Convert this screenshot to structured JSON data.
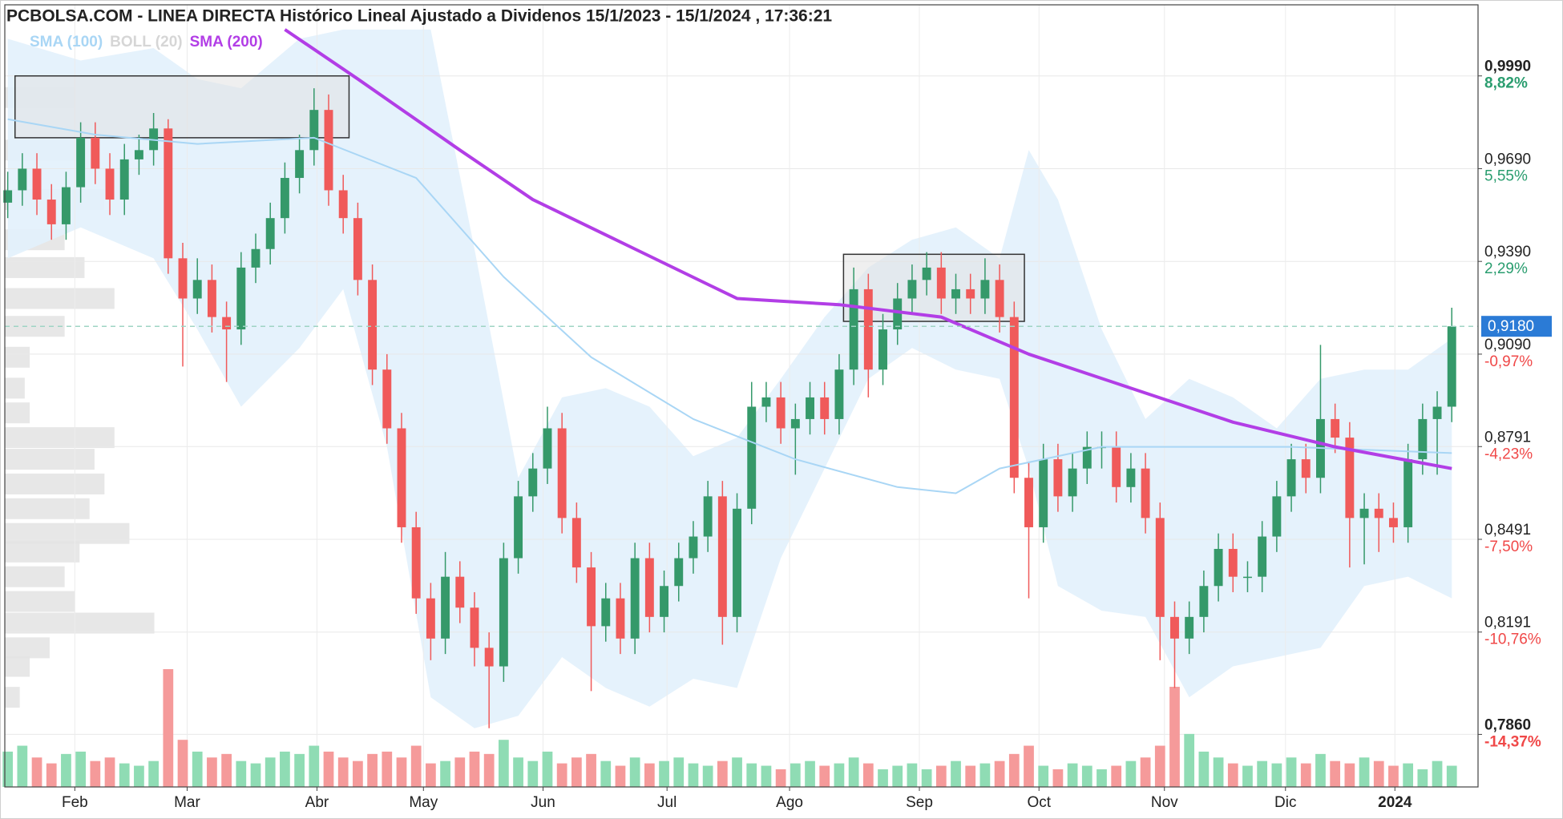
{
  "chart_data": {
    "type": "candlestick",
    "title": "PCBOLSA.COM - LINEA DIRECTA Histórico Lineal Ajustado a Dividenos 15/1/2023 - 15/1/2024 , 17:36:21",
    "up_color": "#35996a",
    "down_color": "#f05a5a",
    "volume_up_color": "#8fdcb4",
    "volume_down_color": "#f59a9a",
    "xlim": [
      -0.2,
      100.8
    ],
    "xticks": [
      {
        "value": 4.6,
        "label": "Feb"
      },
      {
        "value": 12.3,
        "label": "Mar"
      },
      {
        "value": 21.2,
        "label": "Abr"
      },
      {
        "value": 28.5,
        "label": "May"
      },
      {
        "value": 36.7,
        "label": "Jun"
      },
      {
        "value": 45.2,
        "label": "Jul"
      },
      {
        "value": 53.6,
        "label": "Ago"
      },
      {
        "value": 62.5,
        "label": "Sep"
      },
      {
        "value": 70.7,
        "label": "Oct"
      },
      {
        "value": 79.3,
        "label": "Nov"
      },
      {
        "value": 87.6,
        "label": "Dic"
      },
      {
        "value": 95.1,
        "label": "2024"
      }
    ],
    "ylim": [
      0.769,
      1.022
    ],
    "yticks": [
      {
        "value": 0.999,
        "label": "0,9990",
        "change": {
          "value": 8.82,
          "label": "8,82%"
        }
      },
      {
        "value": 0.969,
        "label": "0,9690",
        "change": {
          "value": 5.55,
          "label": "5,55%"
        }
      },
      {
        "value": 0.939,
        "label": "0,9390",
        "change": {
          "value": 2.29,
          "label": "2,29%"
        }
      },
      {
        "value": 0.909,
        "label": "0,9090",
        "change": {
          "value": -0.97,
          "label": "-0,97%"
        }
      },
      {
        "value": 0.8791,
        "label": "0,8791",
        "change": {
          "value": -4.23,
          "label": "-4,23%"
        }
      },
      {
        "value": 0.8491,
        "label": "0,8491",
        "change": {
          "value": -7.5,
          "label": "-7,50%"
        }
      },
      {
        "value": 0.8191,
        "label": "0,8191",
        "change": {
          "value": -10.76,
          "label": "-10,76%"
        }
      },
      {
        "value": 0.786,
        "label": "0,7860",
        "change": {
          "value": -14.37,
          "label": "-14,37%"
        }
      }
    ],
    "grid": true,
    "last_price": {
      "value": 0.918,
      "label": "0,9180",
      "color": "#2b7bd6"
    },
    "ohlc": [
      [
        0.958,
        0.968,
        0.953,
        0.962
      ],
      [
        0.962,
        0.974,
        0.957,
        0.969
      ],
      [
        0.969,
        0.974,
        0.954,
        0.959
      ],
      [
        0.959,
        0.964,
        0.946,
        0.951
      ],
      [
        0.951,
        0.968,
        0.946,
        0.963
      ],
      [
        0.963,
        0.984,
        0.958,
        0.979
      ],
      [
        0.979,
        0.984,
        0.964,
        0.969
      ],
      [
        0.969,
        0.974,
        0.954,
        0.959
      ],
      [
        0.959,
        0.977,
        0.954,
        0.972
      ],
      [
        0.972,
        0.98,
        0.967,
        0.975
      ],
      [
        0.975,
        0.987,
        0.97,
        0.982
      ],
      [
        0.982,
        0.985,
        0.935,
        0.94
      ],
      [
        0.94,
        0.945,
        0.905,
        0.927
      ],
      [
        0.927,
        0.94,
        0.922,
        0.933
      ],
      [
        0.933,
        0.938,
        0.916,
        0.921
      ],
      [
        0.921,
        0.926,
        0.9,
        0.917
      ],
      [
        0.917,
        0.942,
        0.912,
        0.937
      ],
      [
        0.937,
        0.948,
        0.932,
        0.943
      ],
      [
        0.943,
        0.958,
        0.938,
        0.953
      ],
      [
        0.953,
        0.971,
        0.948,
        0.966
      ],
      [
        0.966,
        0.98,
        0.961,
        0.975
      ],
      [
        0.975,
        0.995,
        0.97,
        0.988
      ],
      [
        0.988,
        0.993,
        0.957,
        0.962
      ],
      [
        0.962,
        0.967,
        0.948,
        0.953
      ],
      [
        0.953,
        0.958,
        0.928,
        0.933
      ],
      [
        0.933,
        0.938,
        0.899,
        0.904
      ],
      [
        0.904,
        0.909,
        0.88,
        0.885
      ],
      [
        0.885,
        0.89,
        0.848,
        0.853
      ],
      [
        0.853,
        0.858,
        0.825,
        0.83
      ],
      [
        0.83,
        0.835,
        0.81,
        0.817
      ],
      [
        0.817,
        0.845,
        0.812,
        0.837
      ],
      [
        0.837,
        0.842,
        0.822,
        0.827
      ],
      [
        0.827,
        0.832,
        0.808,
        0.814
      ],
      [
        0.814,
        0.819,
        0.788,
        0.808
      ],
      [
        0.808,
        0.848,
        0.803,
        0.843
      ],
      [
        0.843,
        0.868,
        0.838,
        0.863
      ],
      [
        0.863,
        0.877,
        0.858,
        0.872
      ],
      [
        0.872,
        0.892,
        0.867,
        0.885
      ],
      [
        0.885,
        0.89,
        0.851,
        0.856
      ],
      [
        0.856,
        0.861,
        0.835,
        0.84
      ],
      [
        0.84,
        0.845,
        0.8,
        0.821
      ],
      [
        0.821,
        0.835,
        0.816,
        0.83
      ],
      [
        0.83,
        0.835,
        0.812,
        0.817
      ],
      [
        0.817,
        0.848,
        0.812,
        0.843
      ],
      [
        0.843,
        0.848,
        0.819,
        0.824
      ],
      [
        0.824,
        0.839,
        0.819,
        0.834
      ],
      [
        0.834,
        0.848,
        0.829,
        0.843
      ],
      [
        0.843,
        0.855,
        0.838,
        0.85
      ],
      [
        0.85,
        0.868,
        0.845,
        0.863
      ],
      [
        0.863,
        0.868,
        0.815,
        0.824
      ],
      [
        0.824,
        0.864,
        0.819,
        0.859
      ],
      [
        0.859,
        0.9,
        0.854,
        0.892
      ],
      [
        0.892,
        0.9,
        0.887,
        0.895
      ],
      [
        0.895,
        0.9,
        0.88,
        0.885
      ],
      [
        0.885,
        0.893,
        0.87,
        0.888
      ],
      [
        0.888,
        0.9,
        0.883,
        0.895
      ],
      [
        0.895,
        0.9,
        0.883,
        0.888
      ],
      [
        0.888,
        0.909,
        0.883,
        0.904
      ],
      [
        0.904,
        0.937,
        0.899,
        0.93
      ],
      [
        0.93,
        0.935,
        0.895,
        0.904
      ],
      [
        0.904,
        0.922,
        0.899,
        0.917
      ],
      [
        0.917,
        0.932,
        0.912,
        0.927
      ],
      [
        0.927,
        0.938,
        0.922,
        0.933
      ],
      [
        0.933,
        0.942,
        0.928,
        0.937
      ],
      [
        0.937,
        0.942,
        0.922,
        0.927
      ],
      [
        0.927,
        0.935,
        0.922,
        0.93
      ],
      [
        0.93,
        0.935,
        0.922,
        0.927
      ],
      [
        0.927,
        0.94,
        0.922,
        0.933
      ],
      [
        0.933,
        0.938,
        0.916,
        0.921
      ],
      [
        0.921,
        0.926,
        0.864,
        0.869
      ],
      [
        0.869,
        0.874,
        0.83,
        0.853
      ],
      [
        0.853,
        0.88,
        0.848,
        0.875
      ],
      [
        0.875,
        0.88,
        0.858,
        0.863
      ],
      [
        0.863,
        0.877,
        0.858,
        0.872
      ],
      [
        0.872,
        0.884,
        0.867,
        0.879
      ],
      [
        0.879,
        0.884,
        0.872,
        0.879
      ],
      [
        0.879,
        0.884,
        0.861,
        0.866
      ],
      [
        0.866,
        0.877,
        0.861,
        0.872
      ],
      [
        0.872,
        0.877,
        0.851,
        0.856
      ],
      [
        0.856,
        0.861,
        0.81,
        0.824
      ],
      [
        0.824,
        0.829,
        0.801,
        0.817
      ],
      [
        0.817,
        0.829,
        0.812,
        0.824
      ],
      [
        0.824,
        0.839,
        0.819,
        0.834
      ],
      [
        0.834,
        0.851,
        0.829,
        0.846
      ],
      [
        0.846,
        0.851,
        0.832,
        0.837
      ],
      [
        0.837,
        0.842,
        0.832,
        0.837
      ],
      [
        0.837,
        0.855,
        0.832,
        0.85
      ],
      [
        0.85,
        0.868,
        0.845,
        0.863
      ],
      [
        0.863,
        0.88,
        0.858,
        0.875
      ],
      [
        0.875,
        0.88,
        0.864,
        0.869
      ],
      [
        0.869,
        0.912,
        0.864,
        0.888
      ],
      [
        0.888,
        0.893,
        0.877,
        0.882
      ],
      [
        0.882,
        0.887,
        0.84,
        0.856
      ],
      [
        0.856,
        0.864,
        0.841,
        0.859
      ],
      [
        0.859,
        0.864,
        0.845,
        0.856
      ],
      [
        0.856,
        0.861,
        0.848,
        0.853
      ],
      [
        0.853,
        0.88,
        0.848,
        0.875
      ],
      [
        0.875,
        0.893,
        0.87,
        0.888
      ],
      [
        0.888,
        0.897,
        0.87,
        0.892
      ],
      [
        0.892,
        0.924,
        0.887,
        0.918
      ]
    ],
    "volume": [
      30,
      35,
      25,
      20,
      28,
      30,
      22,
      25,
      20,
      18,
      22,
      100,
      40,
      30,
      25,
      28,
      22,
      20,
      25,
      30,
      28,
      35,
      30,
      25,
      22,
      28,
      30,
      25,
      35,
      20,
      22,
      25,
      30,
      28,
      40,
      25,
      22,
      30,
      20,
      25,
      28,
      22,
      18,
      25,
      20,
      22,
      25,
      20,
      18,
      22,
      25,
      20,
      18,
      15,
      20,
      22,
      18,
      20,
      25,
      20,
      15,
      18,
      20,
      15,
      18,
      22,
      18,
      20,
      22,
      28,
      35,
      18,
      15,
      20,
      18,
      15,
      18,
      22,
      25,
      35,
      85,
      45,
      30,
      25,
      20,
      18,
      22,
      20,
      25,
      20,
      28,
      22,
      20,
      25,
      22,
      18,
      20,
      15,
      22,
      18
    ],
    "series": [
      {
        "name": "SMA (100)",
        "kind": "line",
        "color": "#a9d6f5",
        "x": [
          0,
          6,
          13,
          21,
          28,
          34,
          40,
          47,
          54,
          61,
          65,
          68,
          75,
          81,
          88,
          99
        ],
        "values": [
          0.985,
          0.98,
          0.977,
          0.979,
          0.966,
          0.934,
          0.908,
          0.888,
          0.875,
          0.866,
          0.864,
          0.872,
          0.879,
          0.879,
          0.879,
          0.877
        ]
      },
      {
        "name": "BOLL (20)",
        "kind": "band",
        "color": "#d6d6d6",
        "fill": "#e2f1fc",
        "x": [
          0,
          5,
          10,
          13,
          16,
          20,
          23,
          26,
          29,
          32,
          35,
          38,
          41,
          44,
          47,
          50,
          53,
          56,
          59,
          62,
          65,
          68,
          70,
          72,
          75,
          78,
          81,
          84,
          87,
          90,
          93,
          96,
          99
        ],
        "upper": [
          1.011,
          1.004,
          1.008,
          0.998,
          0.995,
          1.011,
          1.014,
          1.014,
          1.014,
          0.943,
          0.869,
          0.895,
          0.898,
          0.892,
          0.876,
          0.882,
          0.901,
          0.921,
          0.937,
          0.946,
          0.95,
          0.94,
          0.975,
          0.959,
          0.917,
          0.888,
          0.901,
          0.895,
          0.885,
          0.901,
          0.904,
          0.904,
          0.914
        ],
        "lower": [
          0.94,
          0.95,
          0.94,
          0.917,
          0.892,
          0.911,
          0.93,
          0.879,
          0.798,
          0.788,
          0.792,
          0.811,
          0.801,
          0.795,
          0.804,
          0.801,
          0.843,
          0.872,
          0.901,
          0.911,
          0.904,
          0.901,
          0.872,
          0.834,
          0.826,
          0.824,
          0.798,
          0.808,
          0.811,
          0.814,
          0.834,
          0.837,
          0.83
        ]
      },
      {
        "name": "SMA (200)",
        "kind": "line",
        "color": "#b23ee6",
        "x": [
          19,
          24,
          31,
          36,
          43,
          50,
          57,
          64,
          70,
          77,
          84,
          91,
          99
        ],
        "values": [
          1.014,
          0.998,
          0.975,
          0.959,
          0.943,
          0.927,
          0.925,
          0.921,
          0.909,
          0.898,
          0.887,
          0.879,
          0.872
        ]
      }
    ],
    "boxes": [
      {
        "x": [
          0.5,
          23.4
        ],
        "y": [
          0.979,
          0.999
        ]
      },
      {
        "x": [
          57.3,
          69.7
        ],
        "y": [
          0.9196,
          0.9413
        ]
      }
    ],
    "volume_profile": {
      "color": "#e3e3e3",
      "prices": [
        0.992,
        0.975,
        0.959,
        0.946,
        0.937,
        0.927,
        0.918,
        0.908,
        0.898,
        0.89,
        0.882,
        0.875,
        0.867,
        0.859,
        0.851,
        0.845,
        0.837,
        0.829,
        0.822,
        0.814,
        0.808,
        0.798
      ],
      "values": [
        70,
        80,
        100,
        60,
        80,
        110,
        60,
        25,
        20,
        25,
        110,
        90,
        100,
        85,
        125,
        75,
        60,
        70,
        150,
        45,
        25,
        15
      ]
    }
  }
}
